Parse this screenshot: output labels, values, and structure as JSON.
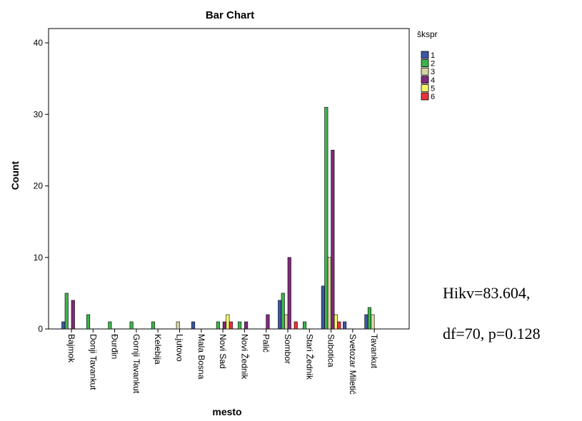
{
  "chart_data": {
    "type": "bar",
    "title": "Bar Chart",
    "xlabel": "mesto",
    "ylabel": "Count",
    "ylim": [
      0,
      42
    ],
    "yticks": [
      0,
      10,
      20,
      30,
      40
    ],
    "grid": false,
    "legend": {
      "title": "škspr",
      "placement": "top-right"
    },
    "categories": [
      "Bajmok",
      "Donji Tavankut",
      "Đurđin",
      "Gornji Tavankut",
      "Kelebija",
      "Ljutovo",
      "Mala Bosna",
      "Novi Sad",
      "Novi Žednik",
      "Palić",
      "Sombor",
      "Stari Žednik",
      "Subotica",
      "Svetozar Miletić",
      "Tavankut"
    ],
    "series": [
      {
        "name": "1",
        "color": "#3b56a4",
        "values": [
          1,
          0,
          0,
          0,
          0,
          0,
          1,
          0,
          0,
          0,
          4,
          0,
          6,
          1,
          2
        ]
      },
      {
        "name": "2",
        "color": "#3cb44b",
        "values": [
          5,
          2,
          1,
          1,
          1,
          0,
          0,
          1,
          1,
          0,
          5,
          1,
          31,
          0,
          3
        ]
      },
      {
        "name": "3",
        "color": "#d8d3a3",
        "values": [
          0,
          0,
          0,
          0,
          0,
          1,
          0,
          0,
          0,
          0,
          2,
          0,
          10,
          0,
          2
        ]
      },
      {
        "name": "4",
        "color": "#7e2a7a",
        "values": [
          4,
          0,
          0,
          0,
          0,
          0,
          0,
          1,
          1,
          2,
          10,
          0,
          25,
          0,
          0
        ]
      },
      {
        "name": "5",
        "color": "#f5f56a",
        "values": [
          0,
          0,
          0,
          0,
          0,
          0,
          0,
          2,
          0,
          0,
          0,
          0,
          2,
          0,
          0
        ]
      },
      {
        "name": "6",
        "color": "#e8323c",
        "values": [
          0,
          0,
          0,
          0,
          0,
          0,
          0,
          1,
          0,
          0,
          1,
          0,
          1,
          0,
          0
        ]
      }
    ]
  },
  "annotations": {
    "line1": "Hikv=83.604,",
    "line2": "df=70,  p=0.128"
  }
}
